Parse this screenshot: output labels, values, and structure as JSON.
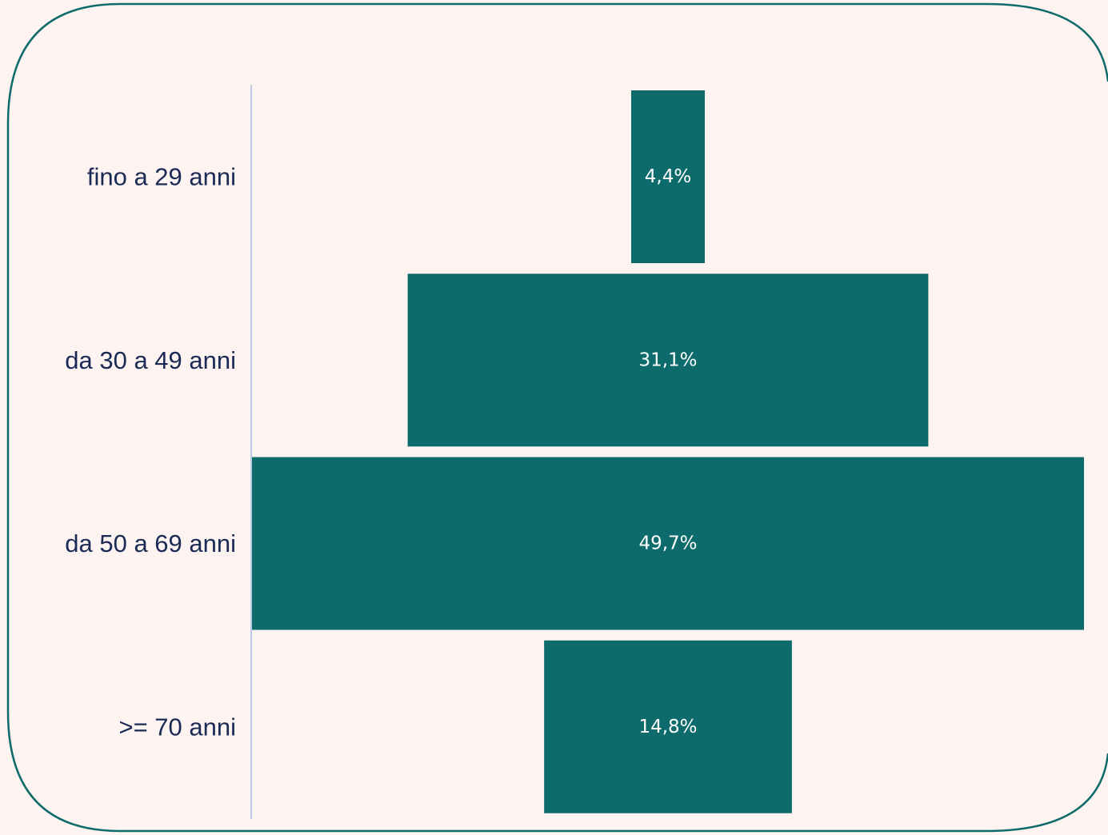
{
  "chart_data": {
    "type": "bar",
    "orientation": "horizontal",
    "style": "funnel-centered",
    "categories": [
      "fino a 29 anni",
      "da 30 a 49 anni",
      "da 50 a 69 anni",
      ">= 70 anni"
    ],
    "values": [
      4.4,
      31.1,
      49.7,
      14.8
    ],
    "value_labels": [
      "4,4%",
      "31,1%",
      "49,7%",
      "14,8%"
    ],
    "unit": "%",
    "bar_color": "#0d6b6b",
    "axis_color": "#b9cbe8",
    "label_color": "#1a2a55",
    "frame_color": "#0d6b6b",
    "background": "#fdf3f1",
    "grid": false,
    "legend": "none"
  }
}
